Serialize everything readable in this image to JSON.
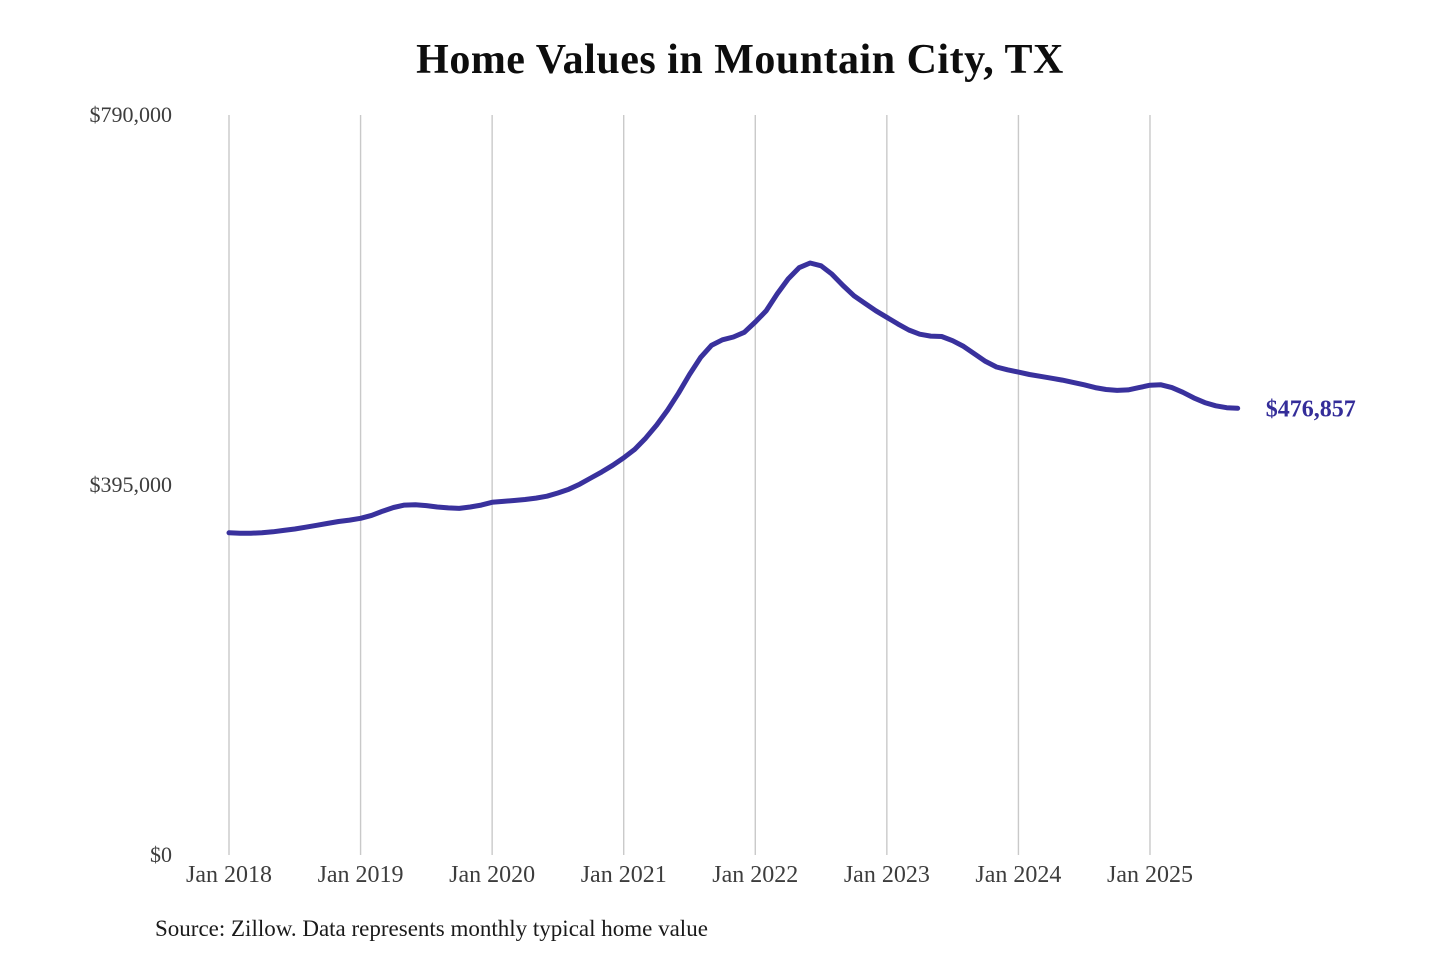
{
  "chart": {
    "title": "Home Values in Mountain City, TX",
    "source": "Source: Zillow. Data represents monthly typical home value",
    "latest_value_label": "$476,857"
  },
  "chart_data": {
    "type": "line",
    "title": "Home Values in Mountain City, TX",
    "xlabel": "",
    "ylabel": "",
    "start_month": "2018-01",
    "end_month": "2025-09",
    "x_tick_labels": [
      "Jan 2018",
      "Jan 2019",
      "Jan 2020",
      "Jan 2021",
      "Jan 2022",
      "Jan 2023",
      "Jan 2024",
      "Jan 2025"
    ],
    "y_ticks": [
      {
        "label": "$0",
        "value": 0
      },
      {
        "label": "$395,000",
        "value": 395000
      },
      {
        "label": "$790,000",
        "value": 790000
      }
    ],
    "ylim": [
      0,
      790000
    ],
    "grid": "vertical-only",
    "legend": "none",
    "line_color": "#39319d",
    "annotation_color": "#342d99",
    "grid_color": "#c9c9c9",
    "tick_label_color": "#3d3d3d",
    "annotation": {
      "text": "$476,857",
      "value": 476857,
      "position": "end-of-line"
    },
    "series_name": "Typical home value (monthly)",
    "values": [
      344000,
      343500,
      343500,
      344000,
      345000,
      346500,
      348000,
      350000,
      352000,
      354000,
      356000,
      357500,
      359500,
      362500,
      367000,
      371000,
      373500,
      374000,
      373000,
      371500,
      370500,
      370000,
      371500,
      373500,
      376500,
      377500,
      378500,
      379500,
      381000,
      383000,
      386500,
      390500,
      396000,
      402500,
      409000,
      416000,
      424000,
      433000,
      445000,
      459000,
      475000,
      493000,
      513000,
      531000,
      544000,
      550000,
      553000,
      558000,
      569000,
      581000,
      599000,
      615000,
      627000,
      632000,
      629000,
      620000,
      608000,
      597000,
      589000,
      581000,
      574000,
      567000,
      560500,
      556000,
      554000,
      553500,
      549000,
      543000,
      535000,
      527000,
      521000,
      518000,
      515500,
      513000,
      511000,
      509000,
      507000,
      504500,
      502000,
      499000,
      497000,
      496000,
      496500,
      499000,
      501500,
      502000,
      499000,
      494000,
      488000,
      483000,
      479500,
      477500,
      476857
    ]
  }
}
